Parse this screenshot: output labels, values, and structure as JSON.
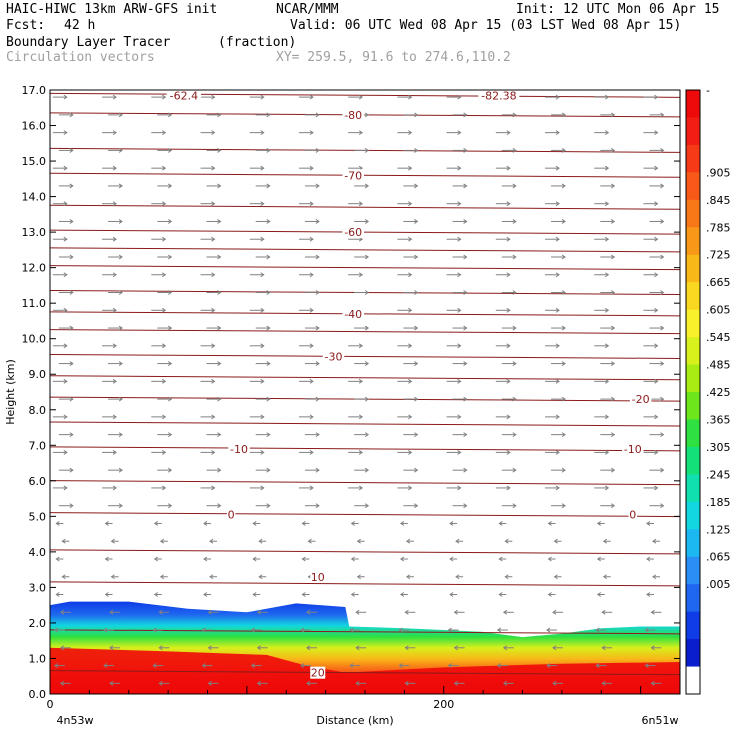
{
  "header": {
    "model": "HAIC-HIWC 13km ARW-GFS init",
    "center": "NCAR/MMM",
    "init": "Init: 12 UTC Mon 06 Apr 15",
    "fcst_label": "Fcst:",
    "fcst_value": "42 h",
    "valid": "Valid: 06 UTC Wed 08 Apr 15 (03 LST Wed 08 Apr 15)",
    "field": "Boundary Layer Tracer",
    "field_units": "(fraction)",
    "vectors": "Circulation vectors",
    "xy": "XY= 259.5, 91.6 to 274.6,110.2"
  },
  "colors": {
    "contour": "#8b1a1a",
    "vector": "#808080",
    "scale": [
      "#ffffff",
      "#0a1ecd",
      "#0f3ce6",
      "#1f67f0",
      "#2a8ef7",
      "#1cb8f2",
      "#12d6e0",
      "#10e0b0",
      "#14e07a",
      "#2ee040",
      "#6ee61c",
      "#a8ec14",
      "#d8f01c",
      "#f8f02a",
      "#f8d820",
      "#f8b818",
      "#f89818",
      "#f87818",
      "#f85818",
      "#f63a18",
      "#f21e14",
      "#ee0a0a"
    ]
  },
  "chart_data": {
    "type": "cross-section",
    "ylabel": "Height (km)",
    "xlabel": "Distance (km)",
    "ylim": [
      0,
      17
    ],
    "xlim": [
      0,
      320
    ],
    "yticks": [
      "0.0",
      "1.0",
      "2.0",
      "3.0",
      "4.0",
      "5.0",
      "6.0",
      "7.0",
      "8.0",
      "9.0",
      "10.0",
      "11.0",
      "12.0",
      "13.0",
      "14.0",
      "15.0",
      "16.0",
      "17.0"
    ],
    "xticks": [
      {
        "x": 0,
        "label": "0"
      },
      {
        "x": 200,
        "label": "200"
      }
    ],
    "left_end_label": "4n53w",
    "right_end_label": "6n51w",
    "colorbar": {
      "labels": [
        "-",
        ".905",
        ".845",
        ".785",
        ".725",
        ".665",
        ".605",
        ".545",
        ".485",
        ".425",
        ".365",
        ".305",
        ".245",
        ".185",
        ".125",
        ".065",
        ".005"
      ]
    },
    "temperature_contours": [
      {
        "label": "-62.4",
        "y": 16.85,
        "label_x": 68
      },
      {
        "label": "-82.38",
        "y": 16.85,
        "label_x": 228
      },
      {
        "label": "-80",
        "y": 16.3,
        "label_x": 154
      },
      {
        "label": "-70",
        "y": 14.6,
        "label_x": 154
      },
      {
        "label": "-60",
        "y": 13.0,
        "label_x": 154
      },
      {
        "label": "-40",
        "y": 10.7,
        "label_x": 154
      },
      {
        "label": "-30",
        "y": 9.5,
        "label_x": 144
      },
      {
        "label": "-20",
        "y": 8.3,
        "label_x": 300
      },
      {
        "label": "-10",
        "y": 6.9,
        "label_x": 96
      },
      {
        "label": "-10",
        "y": 6.9,
        "label_x": 296
      },
      {
        "label": "0",
        "y": 5.05,
        "label_x": 92
      },
      {
        "label": "0",
        "y": 5.05,
        "label_x": 296
      },
      {
        "label": "10",
        "y": 3.3,
        "label_x": 136
      },
      {
        "label": "20",
        "y": 0.6,
        "label_x": 136
      }
    ],
    "boundary_layer_top_km": [
      [
        0,
        2.5
      ],
      [
        10,
        2.6
      ],
      [
        40,
        2.6
      ],
      [
        70,
        2.4
      ],
      [
        100,
        2.3
      ],
      [
        125,
        2.55
      ],
      [
        150,
        2.45
      ],
      [
        152,
        1.9
      ],
      [
        180,
        1.85
      ],
      [
        200,
        1.8
      ],
      [
        220,
        1.75
      ],
      [
        240,
        1.6
      ],
      [
        260,
        1.7
      ],
      [
        280,
        1.85
      ],
      [
        300,
        1.9
      ],
      [
        320,
        1.9
      ]
    ],
    "boundary_layer_red_top_km": [
      [
        0,
        1.3
      ],
      [
        60,
        1.2
      ],
      [
        110,
        1.1
      ],
      [
        130,
        0.8
      ],
      [
        150,
        0.6
      ],
      [
        200,
        0.75
      ],
      [
        260,
        0.85
      ],
      [
        320,
        0.9
      ]
    ],
    "wind_rows_upper_direction": "east",
    "wind_rows_lower_direction": "west",
    "wind_reversal_height_km": 5.2
  }
}
